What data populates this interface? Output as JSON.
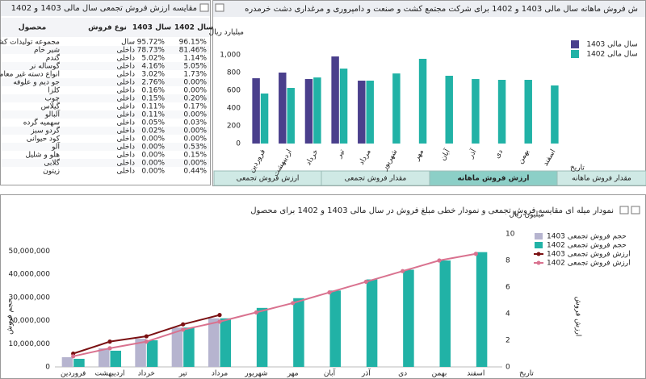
{
  "table": {
    "title": "مقایسه ارزش فروش تجمعی سال مالی 1403 و 1402",
    "columns": [
      "محصول",
      "نوع فروش",
      "سال 1403",
      "سال 1402"
    ],
    "rows": [
      [
        "مجموعه تولیدات کشاورزی",
        "سال",
        "95.72%",
        "96.15%"
      ],
      [
        "شیر خام",
        "داخلی",
        "78.73%",
        "81.46%"
      ],
      [
        "گندم",
        "داخلی",
        "5.02%",
        "1.14%"
      ],
      [
        "گوساله نر",
        "داخلی",
        "4.16%",
        "5.05%"
      ],
      [
        "انواع دسته غیر معامله",
        "داخلی",
        "3.02%",
        "1.73%"
      ],
      [
        "جو دیم و علوفه",
        "داخلی",
        "2.76%",
        "0.00%"
      ],
      [
        "کلزا",
        "داخلی",
        "0.16%",
        "0.00%"
      ],
      [
        "چوب",
        "داخلی",
        "0.15%",
        "0.20%"
      ],
      [
        "گیلاس",
        "داخلی",
        "0.11%",
        "0.17%"
      ],
      [
        "آلبالو",
        "داخلی",
        "0.11%",
        "0.00%"
      ],
      [
        "سهمیه گرده",
        "داخلی",
        "0.05%",
        "0.03%"
      ],
      [
        "گردو سبز",
        "داخلی",
        "0.02%",
        "0.00%"
      ],
      [
        "کود حیوانی",
        "داخلی",
        "0.00%",
        "0.00%"
      ],
      [
        "آلو",
        "داخلی",
        "0.00%",
        "0.53%"
      ],
      [
        "هلو و شلیل",
        "داخلی",
        "0.00%",
        "0.15%"
      ],
      [
        "گلابی",
        "داخلی",
        "0.00%",
        "0.00%"
      ],
      [
        "زیتون",
        "داخلی",
        "0.00%",
        "0.44%"
      ]
    ]
  },
  "tabs": [
    {
      "label": "مقدار فروش ماهانه",
      "active": false
    },
    {
      "label": "ارزش فروش ماهانه",
      "active": true
    },
    {
      "label": "مقدار فروش تجمعی",
      "active": false
    },
    {
      "label": "ارزش فروش تجمعی",
      "active": false
    }
  ],
  "chart_data": [
    {
      "type": "bar",
      "title": "ش فروش ماهانه سال مالی 1403 و 1402 برای شرکت مجتمع کشت و صنعت و دامپروری و مرغداری دشت خرمدره",
      "y_label": "میلیارد ریال",
      "x_label": "تاریخ",
      "categories": [
        "فروردین",
        "اردیبهشت",
        "خرداد",
        "تیر",
        "مرداد",
        "شهریور",
        "مهر",
        "آبان",
        "آذر",
        "دی",
        "بهمن",
        "اسفند"
      ],
      "series": [
        {
          "name": "سال مالی 1403",
          "color": "#4a3f8c",
          "values": [
            736,
            800,
            727,
            982,
            709,
            null,
            null,
            null,
            null,
            null,
            null,
            null
          ]
        },
        {
          "name": "سال مالی 1402",
          "color": "#21b2a6",
          "values": [
            564,
            627,
            745,
            845,
            709,
            790,
            955,
            764,
            727,
            718,
            718,
            655
          ]
        }
      ],
      "ylim": [
        0,
        1200
      ],
      "yticks": [
        0,
        200,
        400,
        600,
        800,
        {
          "value": 1000,
          "label": "1,000"
        }
      ],
      "grid": false,
      "legend": "top-right"
    },
    {
      "type": "combo",
      "title": "نمودار میله ای مقایسه فروش تجمعی و نمودار خطی مبلغ فروش در سال مالی 1403 و 1402 برای محصول",
      "y_label": "حجم فروش",
      "y2_label": "ارزش فروش",
      "y2_unit": "میلیون ریال",
      "x_label": "تاریخ",
      "categories": [
        "فروردین",
        "اردیبهشت",
        "خرداد",
        "تیر",
        "مرداد",
        "شهریور",
        "مهر",
        "آبان",
        "آذر",
        "دی",
        "بهمن",
        "اسفند"
      ],
      "series": [
        {
          "name": "حجم فروش تجمعی 1403",
          "kind": "bar",
          "color": "#b6b4cf",
          "values": [
            4200000,
            8000000,
            12200000,
            17000000,
            21000000,
            null,
            null,
            null,
            null,
            null,
            null,
            null
          ]
        },
        {
          "name": "حجم فروش تجمعی 1402",
          "kind": "bar",
          "color": "#21b2a6",
          "values": [
            3500000,
            7000000,
            11500000,
            17000000,
            21000000,
            25500000,
            29700000,
            33000000,
            37800000,
            42000000,
            46000000,
            49600000
          ]
        },
        {
          "name": "ارزش فروش تجمعی 1403",
          "kind": "line",
          "axis": "y2",
          "color": "#7b1113",
          "values": [
            1.0,
            1.9,
            2.3,
            3.2,
            3.9,
            null,
            null,
            null,
            null,
            null,
            null,
            null
          ]
        },
        {
          "name": "ارزش فروش تجمعی 1402",
          "kind": "line",
          "axis": "y2",
          "color": "#d9728f",
          "values": [
            0.8,
            1.4,
            1.9,
            2.8,
            3.4,
            4.1,
            4.8,
            5.6,
            6.4,
            7.2,
            8.0,
            8.5
          ]
        }
      ],
      "ylim": [
        0,
        57500000
      ],
      "yticks": [
        0,
        {
          "value": 10000000,
          "label": "10,000,000"
        },
        {
          "value": 20000000,
          "label": "20,000,000"
        },
        {
          "value": 30000000,
          "label": "30,000,000"
        },
        {
          "value": 40000000,
          "label": "40,000,000"
        },
        {
          "value": 50000000,
          "label": "50,000,000"
        }
      ],
      "y2lim": [
        0,
        10
      ],
      "y2ticks": [
        0,
        2,
        4,
        6,
        8,
        10
      ],
      "grid": false,
      "legend": "right"
    }
  ]
}
